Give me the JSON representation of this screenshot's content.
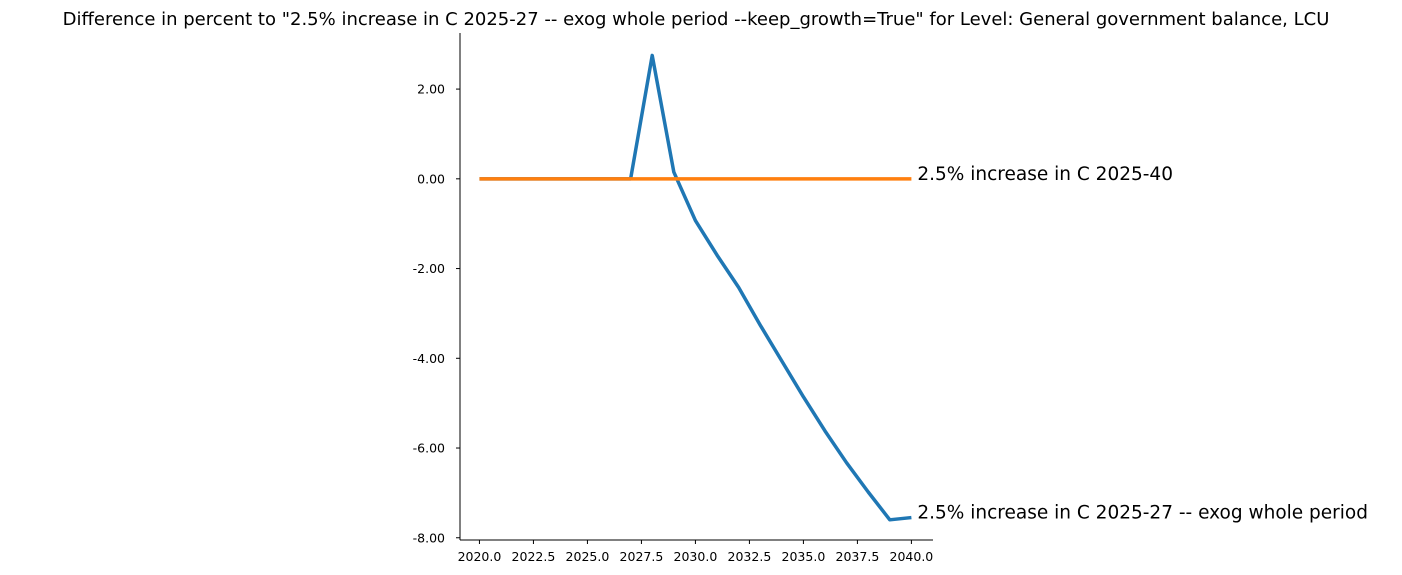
{
  "chart_data": {
    "type": "line",
    "title": "Difference in percent to \"2.5% increase in C 2025-27 -- exog whole period --keep_growth=True\" for Level: General government balance, LCU",
    "xlabel": "",
    "ylabel": "",
    "xlim": [
      2019.1,
      2041.0
    ],
    "ylim": [
      -8.05,
      3.25
    ],
    "x_ticks": [
      2020.0,
      2022.5,
      2025.0,
      2027.5,
      2030.0,
      2032.5,
      2035.0,
      2037.5,
      2040.0
    ],
    "x_tick_labels": [
      "2020.0",
      "2022.5",
      "2025.0",
      "2027.5",
      "2030.0",
      "2032.5",
      "2035.0",
      "2037.5",
      "2040.0"
    ],
    "y_ticks": [
      -8,
      -6,
      -4,
      -2,
      0,
      2
    ],
    "y_tick_labels": [
      "-8.00",
      "-6.00",
      "-4.00",
      "-2.00",
      "0.00",
      "2.00"
    ],
    "grid": false,
    "legend": "inline labels at right end of each line",
    "x": [
      2020,
      2021,
      2022,
      2023,
      2024,
      2025,
      2026,
      2027,
      2028,
      2029,
      2030,
      2031,
      2032,
      2033,
      2034,
      2035,
      2036,
      2037,
      2038,
      2039,
      2040
    ],
    "series": [
      {
        "name": "2.5% increase in C 2025-27 -- exog whole period",
        "color": "#1f77b4",
        "values": [
          0.0,
          0.0,
          0.0,
          0.0,
          0.0,
          0.0,
          0.0,
          0.0,
          2.75,
          0.15,
          -0.93,
          -1.7,
          -2.42,
          -3.26,
          -4.06,
          -4.86,
          -5.62,
          -6.33,
          -6.98,
          -7.6,
          -7.55
        ]
      },
      {
        "name": "2.5% increase in C 2025-40",
        "color": "#ff7f0e",
        "values": [
          0.0,
          0.0,
          0.0,
          0.0,
          0.0,
          0.0,
          0.0,
          0.0,
          0.0,
          0.0,
          0.0,
          0.0,
          0.0,
          0.0,
          0.0,
          0.0,
          0.0,
          0.0,
          0.0,
          0.0,
          0.0
        ]
      }
    ]
  }
}
